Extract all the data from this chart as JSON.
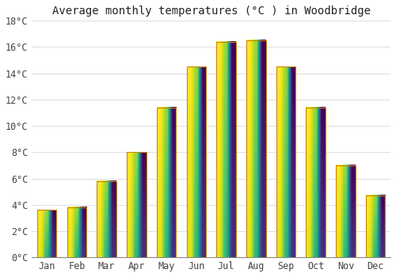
{
  "title": "Average monthly temperatures (°C ) in Woodbridge",
  "months": [
    "Jan",
    "Feb",
    "Mar",
    "Apr",
    "May",
    "Jun",
    "Jul",
    "Aug",
    "Sep",
    "Oct",
    "Nov",
    "Dec"
  ],
  "values": [
    3.6,
    3.8,
    5.8,
    8.0,
    11.4,
    14.5,
    16.4,
    16.5,
    14.5,
    11.4,
    7.0,
    4.7
  ],
  "bar_color_bottom": "#F5A623",
  "bar_color_top": "#FFD700",
  "bar_edge_color": "#C8860A",
  "ylim": [
    0,
    18
  ],
  "yticks": [
    0,
    2,
    4,
    6,
    8,
    10,
    12,
    14,
    16,
    18
  ],
  "background_color": "#FFFFFF",
  "grid_color": "#DDDDDD",
  "title_fontsize": 10,
  "tick_fontsize": 8.5,
  "font_family": "monospace",
  "bar_width": 0.65,
  "figsize": [
    5.0,
    3.5
  ],
  "dpi": 100
}
